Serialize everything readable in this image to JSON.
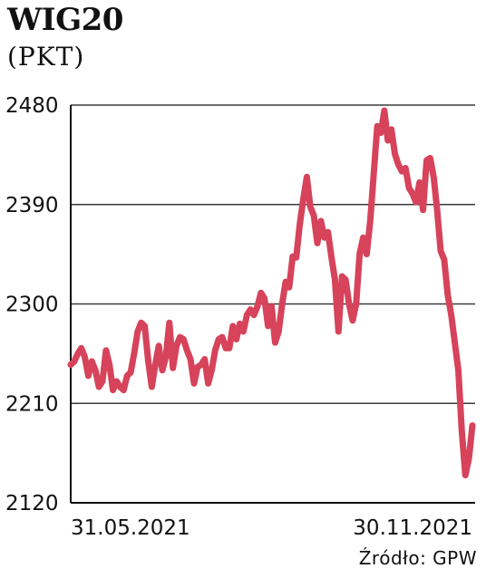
{
  "header": {
    "title": "WIG20",
    "unit": "(PKT)"
  },
  "footer": {
    "source": "Źródło: GPW"
  },
  "colors": {
    "line": "#d6435a",
    "grid": "#3a3a3a",
    "axis": "#111111",
    "text": "#111111"
  },
  "chart_data": {
    "type": "line",
    "title": "WIG20",
    "ylabel": "(PKT)",
    "ylim": [
      2120,
      2480
    ],
    "yticks": [
      2480,
      2390,
      2300,
      2210,
      2120
    ],
    "xtick_labels": [
      "31.05.2021",
      "30.11.2021"
    ],
    "grid": "horizontal",
    "series": [
      {
        "values": [
          2245,
          2248,
          2255,
          2260,
          2252,
          2235,
          2248,
          2240,
          2225,
          2230,
          2258,
          2245,
          2222,
          2230,
          2225,
          2222,
          2235,
          2238,
          2255,
          2275,
          2283,
          2280,
          2248,
          2225,
          2245,
          2262,
          2240,
          2252,
          2283,
          2242,
          2262,
          2270,
          2268,
          2258,
          2250,
          2228,
          2243,
          2245,
          2250,
          2228,
          2240,
          2258,
          2268,
          2270,
          2260,
          2260,
          2280,
          2268,
          2282,
          2275,
          2290,
          2295,
          2290,
          2298,
          2310,
          2305,
          2280,
          2298,
          2265,
          2275,
          2300,
          2320,
          2315,
          2343,
          2342,
          2372,
          2395,
          2415,
          2388,
          2380,
          2355,
          2375,
          2360,
          2365,
          2342,
          2322,
          2275,
          2325,
          2322,
          2300,
          2285,
          2300,
          2345,
          2360,
          2345,
          2375,
          2418,
          2461,
          2455,
          2475,
          2448,
          2458,
          2436,
          2426,
          2420,
          2423,
          2405,
          2400,
          2392,
          2410,
          2385,
          2430,
          2432,
          2415,
          2385,
          2348,
          2340,
          2308,
          2290,
          2265,
          2240,
          2185,
          2145,
          2160,
          2190
        ]
      }
    ]
  }
}
